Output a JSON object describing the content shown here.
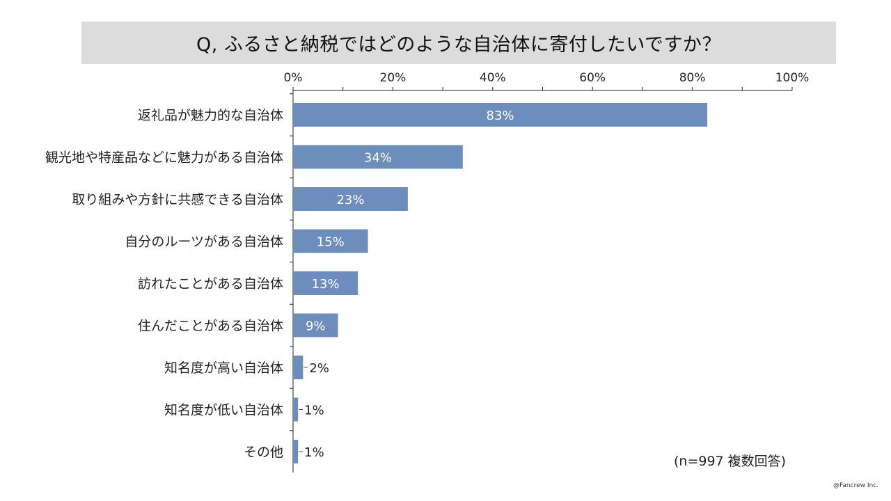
{
  "title": "Q, ふるさと納税ではどのような自治体に寄付したいですか？",
  "sample_note": "(n=997 複数回答)",
  "copyright": "@Fancrew Inc.",
  "colors": {
    "bar": "#6d8ebd",
    "axis": "#222222",
    "title_bg": "#dcdcdc"
  },
  "chart_data": {
    "type": "bar",
    "orientation": "horizontal",
    "categories": [
      "返礼品が魅力的な自治体",
      "観光地や特産品などに魅力がある自治体",
      "取り組みや方針に共感できる自治体",
      "自分のルーツがある自治体",
      "訪れたことがある自治体",
      "住んだことがある自治体",
      "知名度が高い自治体",
      "知名度が低い自治体",
      "その他"
    ],
    "values": [
      83,
      34,
      23,
      15,
      13,
      9,
      2,
      1,
      1
    ],
    "data_labels": [
      "83%",
      "34%",
      "23%",
      "15%",
      "13%",
      "9%",
      "2%",
      "1%",
      "1%"
    ],
    "xlim": [
      0,
      100
    ],
    "xticks": [
      0,
      20,
      40,
      60,
      80,
      100
    ],
    "xtick_labels": [
      "0%",
      "20%",
      "40%",
      "60%",
      "80%",
      "100%"
    ],
    "axis_position": "top",
    "grid": false
  }
}
